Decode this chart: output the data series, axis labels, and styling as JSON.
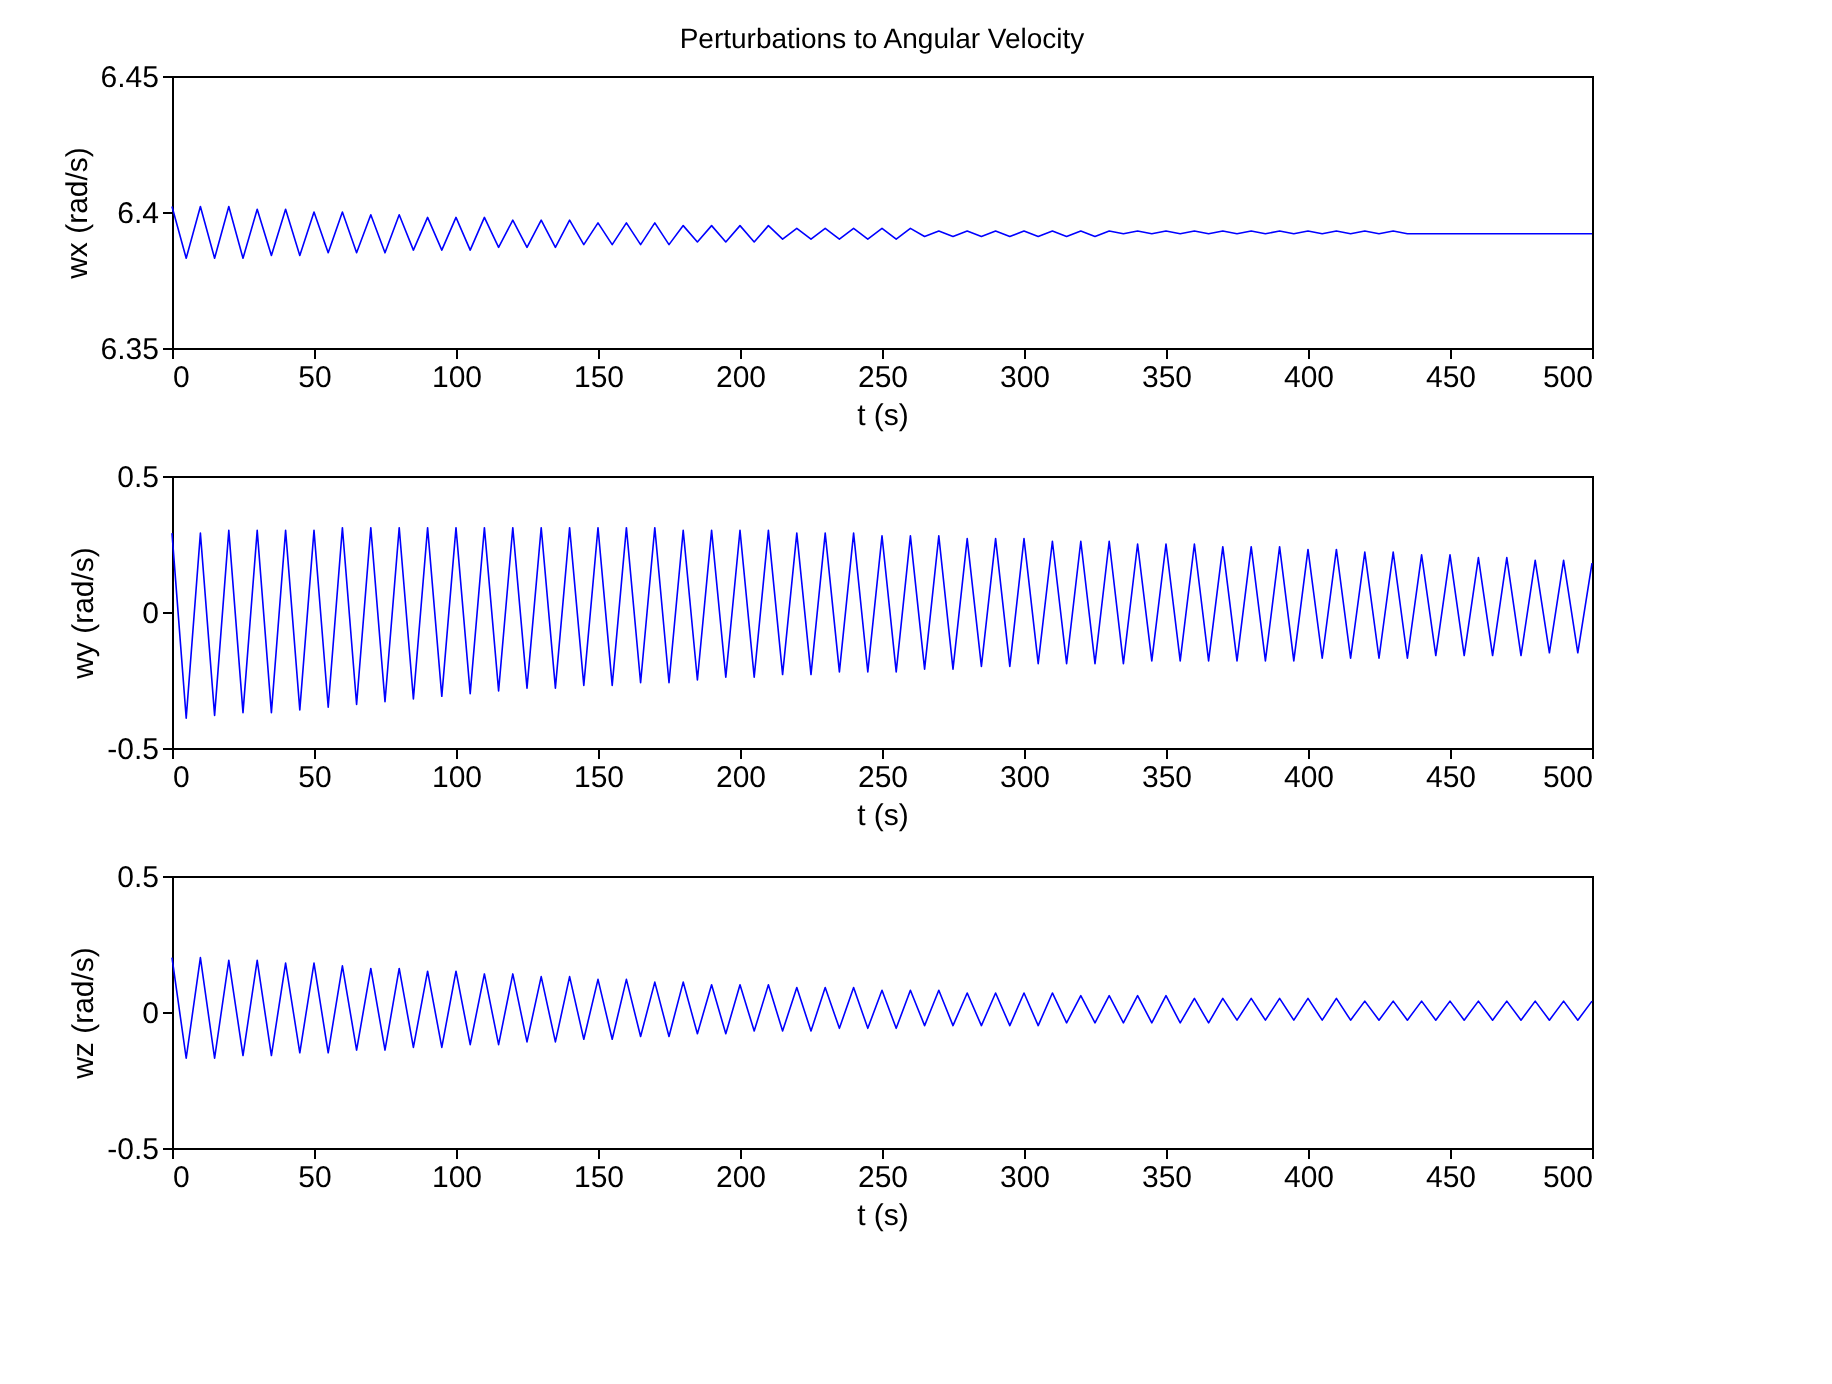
{
  "chart_data": [
    {
      "type": "line",
      "title": "Perturbations to Angular Velocity",
      "xlabel": "t (s)",
      "ylabel": "wx (rad/s)",
      "xlim": [
        0,
        500
      ],
      "xticks": [
        0,
        50,
        100,
        150,
        200,
        250,
        300,
        350,
        400,
        450,
        500
      ],
      "ylim": [
        6.35,
        6.45
      ],
      "yticks": [
        6.35,
        6.4,
        6.45
      ],
      "grid": false,
      "x": [
        0,
        5,
        10,
        15,
        20,
        25,
        30,
        35,
        40,
        45,
        50,
        55,
        60,
        65,
        70,
        75,
        80,
        85,
        90,
        95,
        100,
        105,
        110,
        115,
        120,
        125,
        130,
        135,
        140,
        145,
        150,
        155,
        160,
        165,
        170,
        175,
        180,
        185,
        190,
        195,
        200,
        205,
        210,
        215,
        220,
        225,
        230,
        235,
        240,
        245,
        250,
        255,
        260,
        265,
        270,
        275,
        280,
        285,
        290,
        295,
        300,
        305,
        310,
        315,
        320,
        325,
        330,
        335,
        340,
        345,
        350,
        355,
        360,
        365,
        370,
        375,
        380,
        385,
        390,
        395,
        400,
        405,
        410,
        415,
        420,
        425,
        430,
        435,
        440,
        445,
        450,
        455,
        460,
        465,
        470,
        475,
        480,
        485,
        490,
        495,
        500
      ],
      "series": [
        {
          "color": "#0000ff",
          "values": [
            6.402,
            6.383,
            6.402,
            6.383,
            6.402,
            6.383,
            6.401,
            6.384,
            6.401,
            6.384,
            6.4,
            6.385,
            6.4,
            6.385,
            6.399,
            6.385,
            6.399,
            6.386,
            6.398,
            6.386,
            6.398,
            6.386,
            6.398,
            6.387,
            6.397,
            6.387,
            6.397,
            6.387,
            6.397,
            6.388,
            6.396,
            6.388,
            6.396,
            6.388,
            6.396,
            6.388,
            6.395,
            6.389,
            6.395,
            6.389,
            6.395,
            6.389,
            6.395,
            6.39,
            6.394,
            6.39,
            6.394,
            6.39,
            6.394,
            6.39,
            6.394,
            6.39,
            6.394,
            6.391,
            6.393,
            6.391,
            6.393,
            6.391,
            6.393,
            6.391,
            6.393,
            6.391,
            6.393,
            6.391,
            6.393,
            6.391,
            6.393,
            6.392,
            6.393,
            6.392,
            6.393,
            6.392,
            6.393,
            6.392,
            6.393,
            6.392,
            6.393,
            6.392,
            6.393,
            6.392,
            6.393,
            6.392,
            6.393,
            6.392,
            6.393,
            6.392,
            6.393,
            6.392,
            6.392,
            6.392,
            6.392,
            6.392,
            6.392,
            6.392,
            6.392,
            6.392,
            6.392,
            6.392,
            6.392,
            6.392,
            6.392
          ]
        }
      ]
    },
    {
      "type": "line",
      "xlabel": "t (s)",
      "ylabel": "wy (rad/s)",
      "xlim": [
        0,
        500
      ],
      "xticks": [
        0,
        50,
        100,
        150,
        200,
        250,
        300,
        350,
        400,
        450,
        500
      ],
      "ylim": [
        -0.5,
        0.5
      ],
      "yticks": [
        -0.5,
        0,
        0.5
      ],
      "grid": false,
      "x": [
        0,
        5,
        10,
        15,
        20,
        25,
        30,
        35,
        40,
        45,
        50,
        55,
        60,
        65,
        70,
        75,
        80,
        85,
        90,
        95,
        100,
        105,
        110,
        115,
        120,
        125,
        130,
        135,
        140,
        145,
        150,
        155,
        160,
        165,
        170,
        175,
        180,
        185,
        190,
        195,
        200,
        205,
        210,
        215,
        220,
        225,
        230,
        235,
        240,
        245,
        250,
        255,
        260,
        265,
        270,
        275,
        280,
        285,
        290,
        295,
        300,
        305,
        310,
        315,
        320,
        325,
        330,
        335,
        340,
        345,
        350,
        355,
        360,
        365,
        370,
        375,
        380,
        385,
        390,
        395,
        400,
        405,
        410,
        415,
        420,
        425,
        430,
        435,
        440,
        445,
        450,
        455,
        460,
        465,
        470,
        475,
        480,
        485,
        490,
        495,
        500
      ],
      "series": [
        {
          "color": "#0000ff",
          "values": [
            0.29,
            -0.39,
            0.29,
            -0.38,
            0.3,
            -0.37,
            0.3,
            -0.37,
            0.3,
            -0.36,
            0.3,
            -0.35,
            0.31,
            -0.34,
            0.31,
            -0.33,
            0.31,
            -0.32,
            0.31,
            -0.31,
            0.31,
            -0.3,
            0.31,
            -0.29,
            0.31,
            -0.28,
            0.31,
            -0.28,
            0.31,
            -0.27,
            0.31,
            -0.27,
            0.31,
            -0.26,
            0.31,
            -0.26,
            0.3,
            -0.25,
            0.3,
            -0.24,
            0.3,
            -0.24,
            0.3,
            -0.23,
            0.29,
            -0.23,
            0.29,
            -0.22,
            0.29,
            -0.22,
            0.28,
            -0.22,
            0.28,
            -0.21,
            0.28,
            -0.21,
            0.27,
            -0.2,
            0.27,
            -0.2,
            0.27,
            -0.19,
            0.26,
            -0.19,
            0.26,
            -0.19,
            0.26,
            -0.19,
            0.25,
            -0.18,
            0.25,
            -0.18,
            0.25,
            -0.18,
            0.24,
            -0.18,
            0.24,
            -0.18,
            0.24,
            -0.18,
            0.23,
            -0.17,
            0.23,
            -0.17,
            0.22,
            -0.17,
            0.22,
            -0.17,
            0.21,
            -0.16,
            0.21,
            -0.16,
            0.2,
            -0.16,
            0.2,
            -0.16,
            0.19,
            -0.15,
            0.19,
            -0.15,
            0.18
          ]
        }
      ]
    },
    {
      "type": "line",
      "xlabel": "t (s)",
      "ylabel": "wz (rad/s)",
      "xlim": [
        0,
        500
      ],
      "xticks": [
        0,
        50,
        100,
        150,
        200,
        250,
        300,
        350,
        400,
        450,
        500
      ],
      "ylim": [
        -0.5,
        0.5
      ],
      "yticks": [
        -0.5,
        0,
        0.5
      ],
      "grid": false,
      "x": [
        0,
        5,
        10,
        15,
        20,
        25,
        30,
        35,
        40,
        45,
        50,
        55,
        60,
        65,
        70,
        75,
        80,
        85,
        90,
        95,
        100,
        105,
        110,
        115,
        120,
        125,
        130,
        135,
        140,
        145,
        150,
        155,
        160,
        165,
        170,
        175,
        180,
        185,
        190,
        195,
        200,
        205,
        210,
        215,
        220,
        225,
        230,
        235,
        240,
        245,
        250,
        255,
        260,
        265,
        270,
        275,
        280,
        285,
        290,
        295,
        300,
        305,
        310,
        315,
        320,
        325,
        330,
        335,
        340,
        345,
        350,
        355,
        360,
        365,
        370,
        375,
        380,
        385,
        390,
        395,
        400,
        405,
        410,
        415,
        420,
        425,
        430,
        435,
        440,
        445,
        450,
        455,
        460,
        465,
        470,
        475,
        480,
        485,
        490,
        495,
        500
      ],
      "series": [
        {
          "color": "#0000ff",
          "values": [
            0.2,
            -0.17,
            0.2,
            -0.17,
            0.19,
            -0.16,
            0.19,
            -0.16,
            0.18,
            -0.15,
            0.18,
            -0.15,
            0.17,
            -0.14,
            0.16,
            -0.14,
            0.16,
            -0.13,
            0.15,
            -0.13,
            0.15,
            -0.12,
            0.14,
            -0.12,
            0.14,
            -0.11,
            0.13,
            -0.11,
            0.13,
            -0.1,
            0.12,
            -0.1,
            0.12,
            -0.09,
            0.11,
            -0.09,
            0.11,
            -0.08,
            0.1,
            -0.08,
            0.1,
            -0.07,
            0.1,
            -0.07,
            0.09,
            -0.07,
            0.09,
            -0.06,
            0.09,
            -0.06,
            0.08,
            -0.06,
            0.08,
            -0.05,
            0.08,
            -0.05,
            0.07,
            -0.05,
            0.07,
            -0.05,
            0.07,
            -0.05,
            0.07,
            -0.04,
            0.06,
            -0.04,
            0.06,
            -0.04,
            0.06,
            -0.04,
            0.06,
            -0.04,
            0.05,
            -0.04,
            0.05,
            -0.03,
            0.05,
            -0.03,
            0.05,
            -0.03,
            0.05,
            -0.03,
            0.05,
            -0.03,
            0.04,
            -0.03,
            0.04,
            -0.03,
            0.04,
            -0.03,
            0.04,
            -0.03,
            0.04,
            -0.03,
            0.04,
            -0.03,
            0.04,
            -0.03,
            0.04,
            -0.03,
            0.04
          ]
        }
      ]
    }
  ]
}
